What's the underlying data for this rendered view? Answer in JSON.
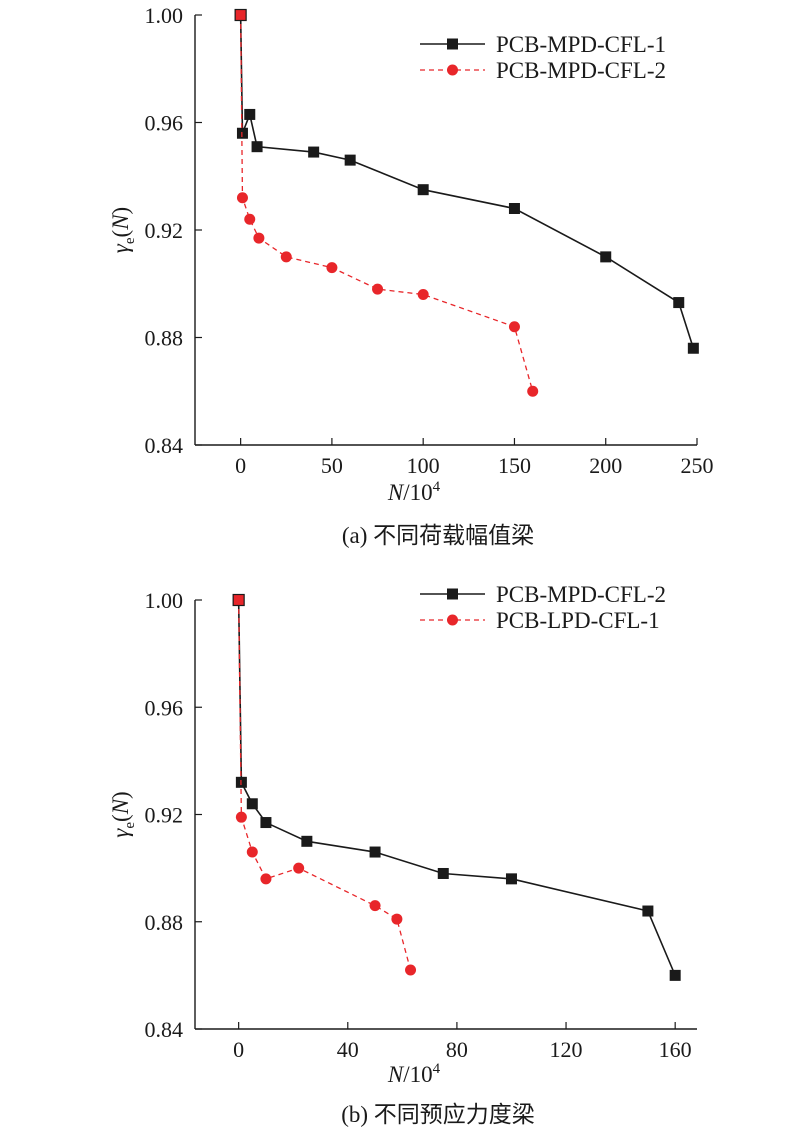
{
  "chart_data": [
    {
      "type": "line",
      "caption": "(a) 不同荷载幅值梁",
      "xlabel": "N/10",
      "xlabel_sup": "4",
      "ylabel": "γ",
      "ylabel_sub": "e",
      "ylabel_suffix": "(N)",
      "xlim": [
        -25,
        250
      ],
      "ylim": [
        0.84,
        1.0
      ],
      "xticks": [
        "0",
        "50",
        "100",
        "150",
        "200",
        "250"
      ],
      "yticks": [
        "0.84",
        "0.88",
        "0.92",
        "0.96",
        "1.00"
      ],
      "legend_position": "top-right",
      "grid": false,
      "series": [
        {
          "name": "PCB-MPD-CFL-1",
          "color": "#1a1a1a",
          "marker": "square",
          "dashed": false,
          "x": [
            0,
            1,
            5,
            9,
            40,
            60,
            100,
            150,
            200,
            240,
            248
          ],
          "y": [
            1.0,
            0.956,
            0.963,
            0.951,
            0.949,
            0.946,
            0.935,
            0.928,
            0.91,
            0.893,
            0.876
          ]
        },
        {
          "name": "PCB-MPD-CFL-2",
          "color": "#e8262a",
          "marker": "circle",
          "dashed": true,
          "x": [
            0,
            1,
            5,
            10,
            25,
            50,
            75,
            100,
            150,
            160
          ],
          "y": [
            1.0,
            0.932,
            0.924,
            0.917,
            0.91,
            0.906,
            0.898,
            0.896,
            0.884,
            0.86
          ]
        }
      ]
    },
    {
      "type": "line",
      "caption": "(b) 不同预应力度梁",
      "xlabel": "N/10",
      "xlabel_sup": "4",
      "ylabel": "γ",
      "ylabel_sub": "e",
      "ylabel_suffix": "(N)",
      "xlim": [
        -16,
        168
      ],
      "ylim": [
        0.84,
        1.0
      ],
      "xticks": [
        "0",
        "40",
        "80",
        "120",
        "160"
      ],
      "yticks": [
        "0.84",
        "0.88",
        "0.92",
        "0.96",
        "1.00"
      ],
      "legend_position": "top-right",
      "grid": false,
      "series": [
        {
          "name": "PCB-MPD-CFL-2",
          "color": "#1a1a1a",
          "marker": "square",
          "dashed": false,
          "x": [
            0,
            1,
            5,
            10,
            25,
            50,
            75,
            100,
            150,
            160
          ],
          "y": [
            1.0,
            0.932,
            0.924,
            0.917,
            0.91,
            0.906,
            0.898,
            0.896,
            0.884,
            0.86
          ]
        },
        {
          "name": "PCB-LPD-CFL-1",
          "color": "#e8262a",
          "marker": "circle",
          "dashed": true,
          "x": [
            0,
            1,
            5,
            10,
            22,
            50,
            58,
            63
          ],
          "y": [
            1.0,
            0.919,
            0.906,
            0.896,
            0.9,
            0.886,
            0.881,
            0.862
          ]
        }
      ]
    }
  ]
}
